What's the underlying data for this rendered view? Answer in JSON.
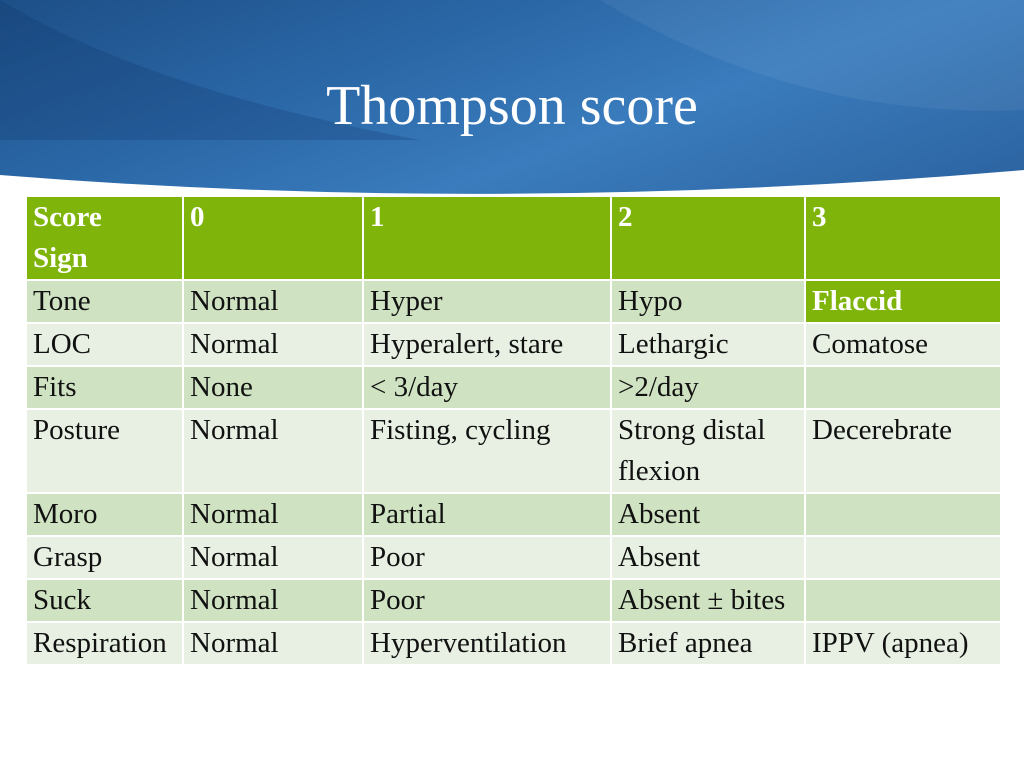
{
  "slide": {
    "title": "Thompson score"
  },
  "table": {
    "header": [
      "Score\nSign",
      "0",
      "1",
      "2",
      "3"
    ],
    "flaccid": "Flaccid",
    "rows": [
      {
        "sign": "Tone",
        "s0": "Normal",
        "s1": "Hyper",
        "s2": "Hypo"
      },
      {
        "sign": "LOC",
        "s0": "Normal",
        "s1": "Hyperalert, stare",
        "s2": "Lethargic",
        "s3": "Comatose"
      },
      {
        "sign": "Fits",
        "s0": "None",
        "s1": "< 3/day",
        "s2": ">2/day",
        "s3": ""
      },
      {
        "sign": "Posture",
        "s0": "Normal",
        "s1": "Fisting, cycling",
        "s2": "Strong distal flexion",
        "s3": "Decerebrate"
      },
      {
        "sign": "Moro",
        "s0": "Normal",
        "s1": "Partial",
        "s2": "Absent",
        "s3": ""
      },
      {
        "sign": "Grasp",
        "s0": "Normal",
        "s1": "Poor",
        "s2": "Absent",
        "s3": ""
      },
      {
        "sign": "Suck",
        "s0": "Normal",
        "s1": "Poor",
        "s2": "Absent ± bites",
        "s3": ""
      },
      {
        "sign": "Respiration",
        "s0": "Normal",
        "s1": "Hyperventilation",
        "s2": "Brief apnea",
        "s3": "IPPV (apnea)"
      }
    ]
  }
}
